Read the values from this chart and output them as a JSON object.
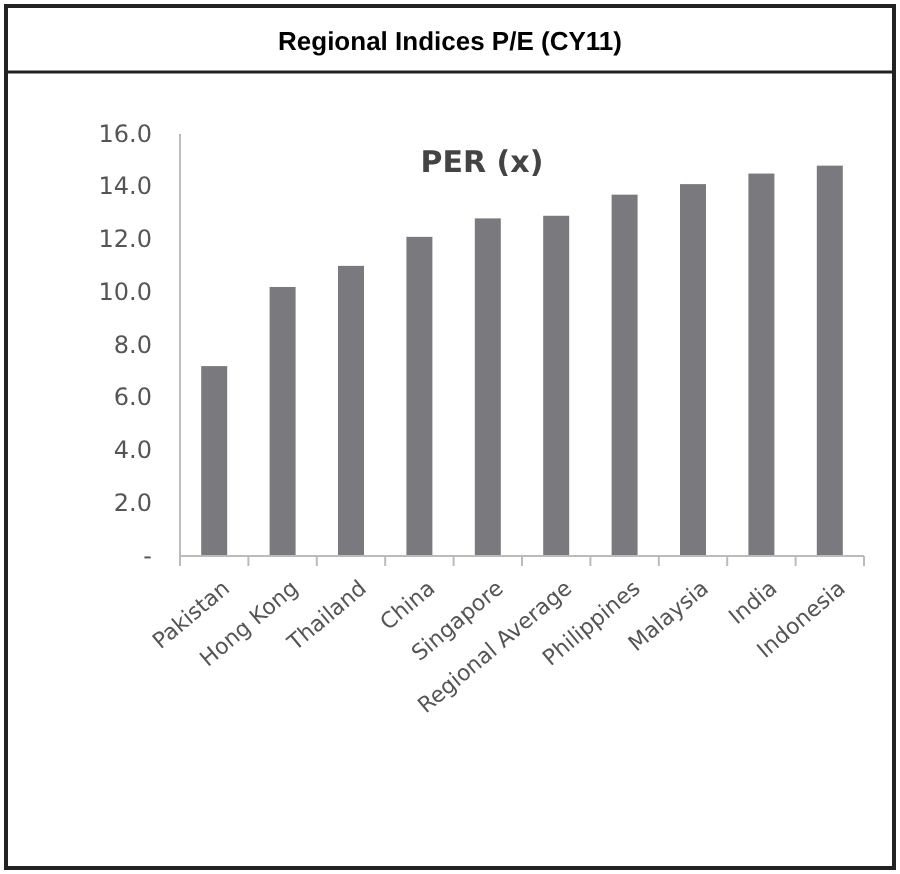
{
  "chart_data": {
    "type": "bar",
    "title": "Regional Indices P/E (CY11)",
    "subtitle": "PER (x)",
    "categories": [
      "Pakistan",
      "Hong Kong",
      "Thailand",
      "China",
      "Singapore",
      "Regional Average",
      "Philippines",
      "Malaysia",
      "India",
      "Indonesia"
    ],
    "values": [
      7.2,
      10.2,
      11.0,
      12.1,
      12.8,
      12.9,
      13.7,
      14.1,
      14.5,
      14.8
    ],
    "color": "#7a7a7e",
    "ylim": [
      0,
      16
    ],
    "yticks": [
      {
        "value": 0,
        "label": "-"
      },
      {
        "value": 2,
        "label": "2.0"
      },
      {
        "value": 4,
        "label": "4.0"
      },
      {
        "value": 6,
        "label": "6.0"
      },
      {
        "value": 8,
        "label": "8.0"
      },
      {
        "value": 10,
        "label": "10.0"
      },
      {
        "value": 12,
        "label": "12.0"
      },
      {
        "value": 14,
        "label": "14.0"
      },
      {
        "value": 16,
        "label": "16.0"
      }
    ],
    "grid": false
  }
}
